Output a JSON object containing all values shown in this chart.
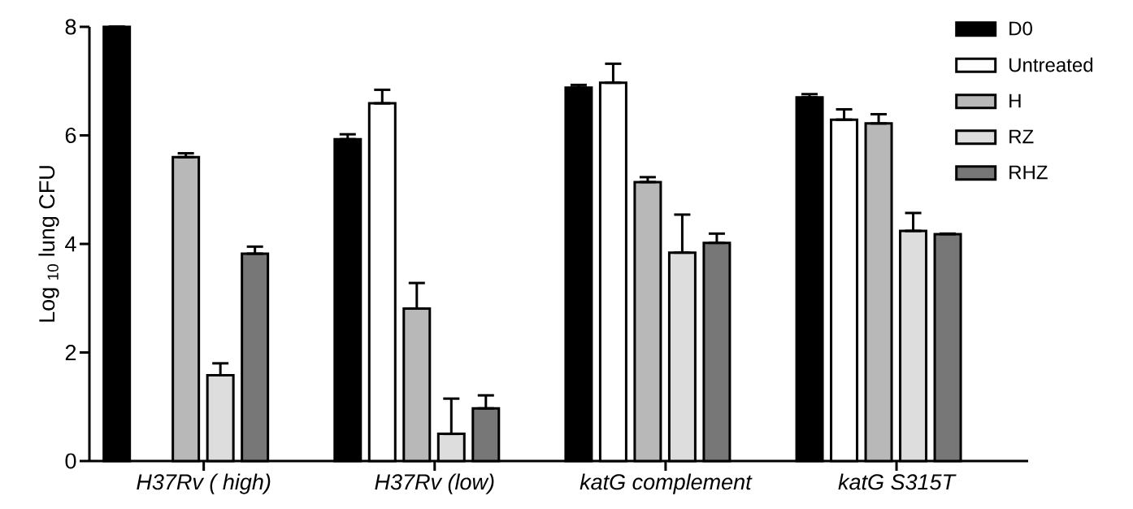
{
  "chart_data": {
    "type": "bar",
    "ylabel": "Log $_{10}$ lung CFU",
    "categories": [
      "H37Rv ( high)",
      "H37Rv (low)",
      "katG complement",
      "katG S315T"
    ],
    "series": [
      {
        "name": "D0",
        "color": "#000000",
        "values": [
          8.0,
          5.93,
          6.88,
          6.7
        ],
        "errors": [
          null,
          [
            5.93,
            6.02
          ],
          [
            6.88,
            6.93
          ],
          [
            6.7,
            6.76
          ]
        ]
      },
      {
        "name": "Untreated",
        "color": "#ffffff",
        "values": [
          null,
          6.59,
          6.97,
          6.29
        ],
        "errors": [
          null,
          [
            6.59,
            6.84
          ],
          [
            6.97,
            7.32
          ],
          [
            6.29,
            6.48
          ]
        ]
      },
      {
        "name": "H",
        "color": "#b8b8b8",
        "values": [
          5.6,
          2.81,
          5.14,
          6.22
        ],
        "errors": [
          [
            5.6,
            5.67
          ],
          [
            2.81,
            3.28
          ],
          [
            5.14,
            5.23
          ],
          [
            6.22,
            6.39
          ]
        ]
      },
      {
        "name": "RZ",
        "color": "#dddddd",
        "values": [
          1.58,
          0.5,
          3.84,
          4.24
        ],
        "errors": [
          [
            1.58,
            1.8
          ],
          [
            0.5,
            1.15
          ],
          [
            3.84,
            4.54
          ],
          [
            4.24,
            4.57
          ]
        ]
      },
      {
        "name": "RHZ",
        "color": "#777777",
        "values": [
          3.82,
          0.97,
          4.02,
          4.18
        ],
        "errors": [
          [
            3.82,
            3.95
          ],
          [
            0.97,
            1.21
          ],
          [
            4.02,
            4.19
          ],
          [
            4.18,
            4.19
          ]
        ]
      }
    ],
    "ylim": [
      0,
      8
    ],
    "yticks": [
      0,
      2,
      4,
      6,
      8
    ],
    "legend": "top right"
  }
}
